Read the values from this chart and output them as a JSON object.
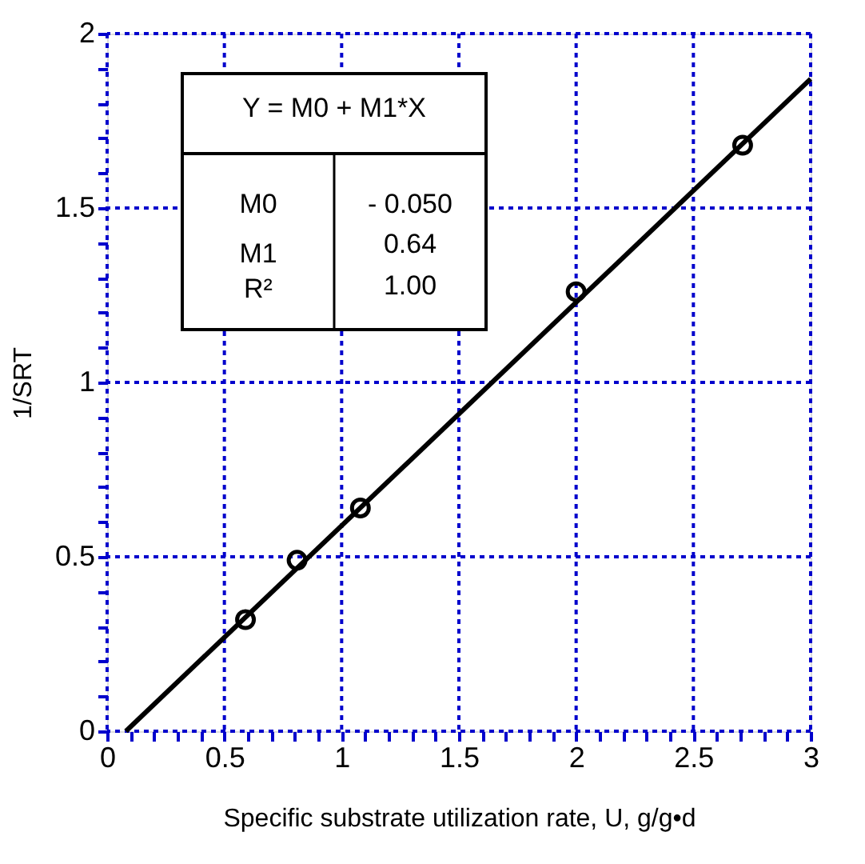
{
  "chart_data": {
    "type": "scatter",
    "xlabel": "Specific substrate utilization rate, U, g/g•d",
    "ylabel": "1/SRT",
    "series": [
      {
        "color": "#000000",
        "marker": "circle",
        "x": [
          0.59,
          0.81,
          1.08,
          2.0,
          2.71
        ],
        "values": [
          0.32,
          0.49,
          0.64,
          1.26,
          1.68
        ]
      },
      {
        "type": "line",
        "color": "#000000",
        "line_style": "solid",
        "x": [
          0.08,
          3.0
        ],
        "values": [
          0.0,
          1.87
        ]
      }
    ],
    "xlim": [
      0,
      3
    ],
    "ylim": [
      0,
      2
    ],
    "xticks": [
      0,
      {
        "value": 0.1,
        "label": null
      },
      {
        "value": 0.2,
        "label": null
      },
      {
        "value": 0.3,
        "label": null
      },
      {
        "value": 0.4,
        "label": null
      },
      0.5,
      {
        "value": 0.6,
        "label": null
      },
      {
        "value": 0.7,
        "label": null
      },
      {
        "value": 0.8,
        "label": null
      },
      {
        "value": 0.9,
        "label": null
      },
      1,
      {
        "value": 1.1,
        "label": null
      },
      {
        "value": 1.2,
        "label": null
      },
      {
        "value": 1.3,
        "label": null
      },
      {
        "value": 1.4,
        "label": null
      },
      1.5,
      {
        "value": 1.6,
        "label": null
      },
      {
        "value": 1.7,
        "label": null
      },
      {
        "value": 1.8,
        "label": null
      },
      {
        "value": 1.9,
        "label": null
      },
      2,
      {
        "value": 2.1,
        "label": null
      },
      {
        "value": 2.2,
        "label": null
      },
      {
        "value": 2.3,
        "label": null
      },
      {
        "value": 2.4,
        "label": null
      },
      2.5,
      {
        "value": 2.6,
        "label": null
      },
      {
        "value": 2.7,
        "label": null
      },
      {
        "value": 2.8,
        "label": null
      },
      {
        "value": 2.9,
        "label": null
      },
      3
    ],
    "yticks": [
      0,
      {
        "value": 0.1,
        "label": null
      },
      {
        "value": 0.2,
        "label": null
      },
      {
        "value": 0.3,
        "label": null
      },
      {
        "value": 0.4,
        "label": null
      },
      0.5,
      {
        "value": 0.6,
        "label": null
      },
      {
        "value": 0.7,
        "label": null
      },
      {
        "value": 0.8,
        "label": null
      },
      {
        "value": 0.9,
        "label": null
      },
      1,
      {
        "value": 1.1,
        "label": null
      },
      {
        "value": 1.2,
        "label": null
      },
      {
        "value": 1.3,
        "label": null
      },
      {
        "value": 1.4,
        "label": null
      },
      1.5,
      {
        "value": 1.6,
        "label": null
      },
      {
        "value": 1.7,
        "label": null
      },
      {
        "value": 1.8,
        "label": null
      },
      {
        "value": 1.9,
        "label": null
      },
      2
    ],
    "grid": true,
    "annotations": [
      "Y = M0 + M1*X",
      "M0",
      "- 0.050",
      "M1",
      "0.64",
      "R²",
      "1.00"
    ]
  }
}
